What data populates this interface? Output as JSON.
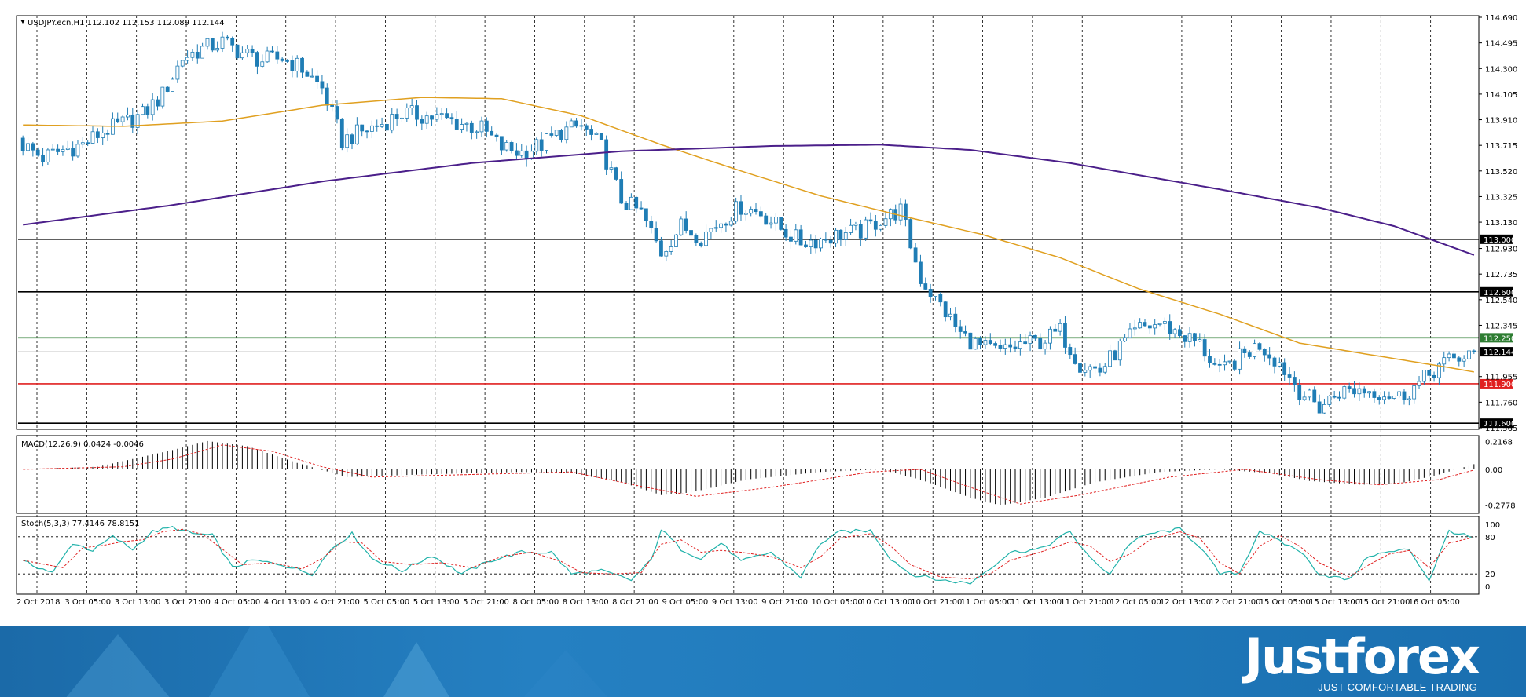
{
  "header": {
    "symbol_line": "USDJPY.ecn,H1  112.102 112.153 112.089 112.144",
    "macd_label": "MACD(12,26,9) 0.0424 -0.0046",
    "stoch_label": "Stoch(5,3,3) 77.4146 78.8151"
  },
  "brand": {
    "name": "Justforex",
    "tagline": "JUST COMFORTABLE TRADING"
  },
  "colors": {
    "up_candle": "#ffffff",
    "down_candle": "#1f7db5",
    "candle_outline": "#1f7db5",
    "ma_fast": "#e0a020",
    "ma_slow": "#4b1f8a",
    "level_black": "#000000",
    "level_green": "#2e7d32",
    "level_red": "#e02020",
    "macd_hist": "#000000",
    "macd_signal": "#e02020",
    "stoch_main": "#20b2aa",
    "stoch_signal": "#e02020"
  },
  "chart_data": {
    "type": "candlestick",
    "symbol": "USDJPY.ecn",
    "timeframe": "H1",
    "ylim": [
      111.565,
      114.69
    ],
    "y_ticks": [
      "114.690",
      "114.495",
      "114.300",
      "114.105",
      "113.910",
      "113.715",
      "113.520",
      "113.325",
      "113.130",
      "112.930",
      "112.735",
      "112.540",
      "112.345",
      "111.955",
      "111.760",
      "111.565"
    ],
    "x_ticks": [
      "2 Oct 2018",
      "3 Oct 05:00",
      "3 Oct 13:00",
      "3 Oct 21:00",
      "4 Oct 05:00",
      "4 Oct 13:00",
      "4 Oct 21:00",
      "5 Oct 05:00",
      "5 Oct 13:00",
      "5 Oct 21:00",
      "8 Oct 05:00",
      "8 Oct 13:00",
      "8 Oct 21:00",
      "9 Oct 05:00",
      "9 Oct 13:00",
      "9 Oct 21:00",
      "10 Oct 05:00",
      "10 Oct 13:00",
      "10 Oct 21:00",
      "11 Oct 05:00",
      "11 Oct 13:00",
      "11 Oct 21:00",
      "12 Oct 05:00",
      "12 Oct 13:00",
      "12 Oct 21:00",
      "15 Oct 05:00",
      "15 Oct 13:00",
      "15 Oct 21:00",
      "16 Oct 05:00"
    ],
    "levels": [
      {
        "label": "113.000",
        "value": 113.0,
        "color": "black"
      },
      {
        "label": "112.600",
        "value": 112.6,
        "color": "black"
      },
      {
        "label": "112.250",
        "value": 112.25,
        "color": "green"
      },
      {
        "label": "112.144",
        "value": 112.144,
        "color": "gray"
      },
      {
        "label": "111.900",
        "value": 111.9,
        "color": "red"
      },
      {
        "label": "111.600",
        "value": 111.6,
        "color": "black"
      }
    ],
    "close_path": [
      [
        0,
        113.72
      ],
      [
        4,
        113.62
      ],
      [
        8,
        113.68
      ],
      [
        12,
        113.72
      ],
      [
        16,
        113.82
      ],
      [
        20,
        113.88
      ],
      [
        24,
        113.95
      ],
      [
        28,
        114.1
      ],
      [
        32,
        114.38
      ],
      [
        36,
        114.45
      ],
      [
        40,
        114.5
      ],
      [
        44,
        114.42
      ],
      [
        48,
        114.36
      ],
      [
        52,
        114.38
      ],
      [
        56,
        114.3
      ],
      [
        60,
        114.15
      ],
      [
        64,
        113.75
      ],
      [
        68,
        113.82
      ],
      [
        72,
        113.88
      ],
      [
        76,
        113.96
      ],
      [
        80,
        113.94
      ],
      [
        84,
        113.92
      ],
      [
        88,
        113.88
      ],
      [
        92,
        113.84
      ],
      [
        96,
        113.7
      ],
      [
        100,
        113.66
      ],
      [
        104,
        113.72
      ],
      [
        108,
        113.82
      ],
      [
        112,
        113.86
      ],
      [
        116,
        113.7
      ],
      [
        120,
        113.3
      ],
      [
        124,
        113.2
      ],
      [
        128,
        112.9
      ],
      [
        132,
        113.1
      ],
      [
        136,
        113.02
      ],
      [
        140,
        113.14
      ],
      [
        144,
        113.25
      ],
      [
        148,
        113.2
      ],
      [
        152,
        113.08
      ],
      [
        156,
        112.98
      ],
      [
        160,
        113.0
      ],
      [
        164,
        113.04
      ],
      [
        168,
        113.06
      ],
      [
        172,
        113.15
      ],
      [
        176,
        113.22
      ],
      [
        180,
        112.7
      ],
      [
        184,
        112.5
      ],
      [
        188,
        112.28
      ],
      [
        192,
        112.18
      ],
      [
        196,
        112.14
      ],
      [
        200,
        112.2
      ],
      [
        204,
        112.22
      ],
      [
        208,
        112.3
      ],
      [
        212,
        112.05
      ],
      [
        216,
        112.0
      ],
      [
        220,
        112.18
      ],
      [
        224,
        112.32
      ],
      [
        228,
        112.36
      ],
      [
        232,
        112.28
      ],
      [
        236,
        112.2
      ],
      [
        240,
        111.98
      ],
      [
        244,
        112.1
      ],
      [
        248,
        112.2
      ],
      [
        252,
        112.06
      ],
      [
        256,
        111.85
      ],
      [
        260,
        111.72
      ],
      [
        264,
        111.84
      ],
      [
        268,
        111.86
      ],
      [
        272,
        111.84
      ],
      [
        276,
        111.8
      ],
      [
        280,
        111.9
      ],
      [
        284,
        112.04
      ],
      [
        288,
        112.1
      ],
      [
        291,
        112.144
      ]
    ],
    "series": [
      {
        "name": "MA fast",
        "points": [
          [
            0,
            113.87
          ],
          [
            20,
            113.86
          ],
          [
            40,
            113.9
          ],
          [
            60,
            114.02
          ],
          [
            80,
            114.08
          ],
          [
            96,
            114.07
          ],
          [
            112,
            113.94
          ],
          [
            128,
            113.72
          ],
          [
            144,
            113.52
          ],
          [
            160,
            113.33
          ],
          [
            176,
            113.18
          ],
          [
            192,
            113.04
          ],
          [
            208,
            112.86
          ],
          [
            224,
            112.62
          ],
          [
            240,
            112.43
          ],
          [
            256,
            112.21
          ],
          [
            272,
            112.11
          ],
          [
            285,
            112.03
          ],
          [
            291,
            111.99
          ]
        ]
      },
      {
        "name": "MA slow",
        "points": [
          [
            0,
            113.11
          ],
          [
            30,
            113.26
          ],
          [
            60,
            113.44
          ],
          [
            90,
            113.58
          ],
          [
            120,
            113.67
          ],
          [
            150,
            113.71
          ],
          [
            172,
            113.72
          ],
          [
            190,
            113.68
          ],
          [
            210,
            113.58
          ],
          [
            240,
            113.38
          ],
          [
            260,
            113.24
          ],
          [
            275,
            113.1
          ],
          [
            291,
            112.88
          ]
        ]
      }
    ],
    "macd": {
      "ylim": [
        -0.33,
        0.25
      ],
      "y_ticks": [
        "0.2168",
        "0.00",
        "-0.2778"
      ],
      "hist_path": [
        [
          0,
          0.0
        ],
        [
          15,
          0.02
        ],
        [
          30,
          0.15
        ],
        [
          37,
          0.22
        ],
        [
          45,
          0.18
        ],
        [
          55,
          0.05
        ],
        [
          65,
          -0.06
        ],
        [
          80,
          -0.04
        ],
        [
          100,
          -0.02
        ],
        [
          110,
          -0.03
        ],
        [
          120,
          -0.1
        ],
        [
          128,
          -0.2
        ],
        [
          134,
          -0.18
        ],
        [
          145,
          -0.08
        ],
        [
          160,
          -0.02
        ],
        [
          172,
          0.0
        ],
        [
          180,
          -0.08
        ],
        [
          190,
          -0.22
        ],
        [
          196,
          -0.28
        ],
        [
          205,
          -0.22
        ],
        [
          215,
          -0.1
        ],
        [
          228,
          -0.02
        ],
        [
          240,
          0.0
        ],
        [
          250,
          -0.03
        ],
        [
          258,
          -0.09
        ],
        [
          268,
          -0.12
        ],
        [
          276,
          -0.11
        ],
        [
          284,
          -0.04
        ],
        [
          291,
          0.04
        ]
      ],
      "signal_path": [
        [
          0,
          0.0
        ],
        [
          20,
          0.02
        ],
        [
          30,
          0.08
        ],
        [
          40,
          0.19
        ],
        [
          50,
          0.14
        ],
        [
          60,
          0.02
        ],
        [
          70,
          -0.06
        ],
        [
          90,
          -0.04
        ],
        [
          110,
          -0.02
        ],
        [
          125,
          -0.14
        ],
        [
          135,
          -0.21
        ],
        [
          150,
          -0.14
        ],
        [
          170,
          -0.02
        ],
        [
          180,
          0.0
        ],
        [
          190,
          -0.14
        ],
        [
          200,
          -0.27
        ],
        [
          212,
          -0.2
        ],
        [
          230,
          -0.06
        ],
        [
          245,
          0.0
        ],
        [
          260,
          -0.08
        ],
        [
          272,
          -0.12
        ],
        [
          284,
          -0.08
        ],
        [
          291,
          -0.005
        ]
      ]
    },
    "stochastic": {
      "ylim": [
        0,
        100
      ],
      "y_ticks": [
        "100",
        "80",
        "20",
        "0"
      ],
      "levels": [
        80,
        20
      ],
      "main_path": [
        [
          0,
          40
        ],
        [
          6,
          22
        ],
        [
          10,
          70
        ],
        [
          14,
          58
        ],
        [
          18,
          80
        ],
        [
          22,
          60
        ],
        [
          26,
          88
        ],
        [
          30,
          95
        ],
        [
          34,
          85
        ],
        [
          38,
          82
        ],
        [
          42,
          30
        ],
        [
          46,
          42
        ],
        [
          52,
          35
        ],
        [
          58,
          20
        ],
        [
          62,
          62
        ],
        [
          66,
          85
        ],
        [
          70,
          45
        ],
        [
          76,
          25
        ],
        [
          82,
          50
        ],
        [
          88,
          20
        ],
        [
          94,
          42
        ],
        [
          100,
          55
        ],
        [
          106,
          55
        ],
        [
          110,
          20
        ],
        [
          116,
          25
        ],
        [
          122,
          10
        ],
        [
          126,
          42
        ],
        [
          128,
          92
        ],
        [
          132,
          60
        ],
        [
          136,
          45
        ],
        [
          140,
          70
        ],
        [
          144,
          40
        ],
        [
          150,
          55
        ],
        [
          156,
          15
        ],
        [
          160,
          70
        ],
        [
          164,
          88
        ],
        [
          170,
          90
        ],
        [
          174,
          45
        ],
        [
          178,
          20
        ],
        [
          184,
          10
        ],
        [
          190,
          5
        ],
        [
          194,
          30
        ],
        [
          198,
          55
        ],
        [
          204,
          60
        ],
        [
          210,
          88
        ],
        [
          214,
          45
        ],
        [
          218,
          20
        ],
        [
          222,
          70
        ],
        [
          226,
          85
        ],
        [
          232,
          92
        ],
        [
          236,
          65
        ],
        [
          240,
          20
        ],
        [
          244,
          22
        ],
        [
          248,
          90
        ],
        [
          252,
          72
        ],
        [
          256,
          58
        ],
        [
          260,
          20
        ],
        [
          266,
          10
        ],
        [
          270,
          50
        ],
        [
          274,
          55
        ],
        [
          278,
          60
        ],
        [
          282,
          10
        ],
        [
          286,
          90
        ],
        [
          291,
          77
        ]
      ],
      "signal_path": [
        [
          0,
          42
        ],
        [
          8,
          30
        ],
        [
          12,
          62
        ],
        [
          16,
          66
        ],
        [
          20,
          72
        ],
        [
          24,
          75
        ],
        [
          28,
          88
        ],
        [
          32,
          92
        ],
        [
          36,
          84
        ],
        [
          40,
          60
        ],
        [
          44,
          35
        ],
        [
          50,
          38
        ],
        [
          56,
          28
        ],
        [
          60,
          45
        ],
        [
          64,
          72
        ],
        [
          68,
          70
        ],
        [
          72,
          40
        ],
        [
          78,
          35
        ],
        [
          84,
          38
        ],
        [
          90,
          30
        ],
        [
          96,
          48
        ],
        [
          102,
          55
        ],
        [
          108,
          40
        ],
        [
          112,
          22
        ],
        [
          118,
          20
        ],
        [
          124,
          22
        ],
        [
          128,
          68
        ],
        [
          132,
          75
        ],
        [
          136,
          55
        ],
        [
          140,
          58
        ],
        [
          144,
          55
        ],
        [
          150,
          48
        ],
        [
          156,
          30
        ],
        [
          160,
          48
        ],
        [
          164,
          78
        ],
        [
          170,
          85
        ],
        [
          174,
          65
        ],
        [
          178,
          35
        ],
        [
          184,
          15
        ],
        [
          190,
          12
        ],
        [
          194,
          20
        ],
        [
          198,
          42
        ],
        [
          204,
          55
        ],
        [
          210,
          72
        ],
        [
          214,
          65
        ],
        [
          218,
          40
        ],
        [
          222,
          52
        ],
        [
          226,
          75
        ],
        [
          232,
          88
        ],
        [
          236,
          78
        ],
        [
          240,
          38
        ],
        [
          244,
          20
        ],
        [
          248,
          65
        ],
        [
          252,
          82
        ],
        [
          256,
          65
        ],
        [
          260,
          38
        ],
        [
          266,
          15
        ],
        [
          270,
          35
        ],
        [
          274,
          52
        ],
        [
          278,
          58
        ],
        [
          282,
          30
        ],
        [
          286,
          70
        ],
        [
          291,
          79
        ]
      ]
    }
  }
}
